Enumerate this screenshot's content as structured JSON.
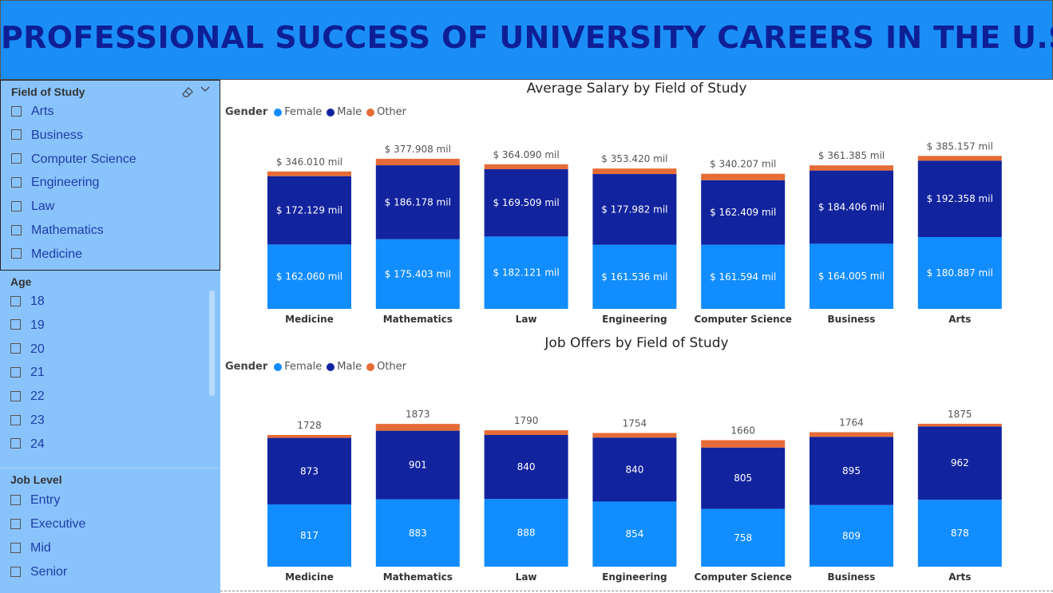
{
  "header": {
    "title": "PROFESSIONAL SUCCESS OF UNIVERSITY CAREERS IN THE U.S"
  },
  "colors": {
    "female": "#118DFF",
    "male": "#12239E",
    "other": "#E66C37"
  },
  "slicers": {
    "field": {
      "title": "Field of Study",
      "items": [
        "Arts",
        "Business",
        "Computer Science",
        "Engineering",
        "Law",
        "Mathematics",
        "Medicine"
      ]
    },
    "age": {
      "title": "Age",
      "items": [
        "18",
        "19",
        "20",
        "21",
        "22",
        "23",
        "24"
      ]
    },
    "job": {
      "title": "Job Level",
      "items": [
        "Entry",
        "Executive",
        "Mid",
        "Senior"
      ]
    }
  },
  "chart_data": [
    {
      "type": "bar",
      "stacked": true,
      "title": "Average Salary by Field of Study",
      "legend": {
        "title": "Gender",
        "placement": "top-left"
      },
      "categories": [
        "Medicine",
        "Mathematics",
        "Law",
        "Engineering",
        "Computer Science",
        "Business",
        "Arts"
      ],
      "series": [
        {
          "name": "Female",
          "values": [
            162.06,
            175.403,
            182.121,
            161.536,
            161.594,
            164.005,
            180.887
          ],
          "labels": [
            "$ 162.060 mil",
            "$ 175.403 mil",
            "$ 182.121 mil",
            "$ 161.536 mil",
            "$ 161.594 mil",
            "$ 164.005 mil",
            "$ 180.887 mil"
          ]
        },
        {
          "name": "Male",
          "values": [
            172.129,
            186.178,
            169.509,
            177.982,
            162.409,
            184.406,
            192.358
          ],
          "labels": [
            "$ 172.129 mil",
            "$ 186.178 mil",
            "$ 169.509 mil",
            "$ 177.982 mil",
            "$ 162.409 mil",
            "$ 184.406 mil",
            "$ 192.358 mil"
          ]
        },
        {
          "name": "Other",
          "values": [
            11.821,
            16.327,
            12.46,
            13.902,
            16.204,
            12.974,
            11.912
          ]
        }
      ],
      "totals": [
        346.01,
        377.908,
        364.09,
        353.42,
        340.207,
        361.385,
        385.157
      ],
      "total_labels": [
        "$ 346.010 mil",
        "$ 377.908 mil",
        "$ 364.090 mil",
        "$ 353.420 mil",
        "$ 340.207 mil",
        "$ 361.385 mil",
        "$ 385.157 mil"
      ],
      "ylim": [
        0,
        420
      ]
    },
    {
      "type": "bar",
      "stacked": true,
      "title": "Job Offers by Field of Study",
      "legend": {
        "title": "Gender",
        "placement": "top-left"
      },
      "categories": [
        "Medicine",
        "Mathematics",
        "Law",
        "Engineering",
        "Computer Science",
        "Business",
        "Arts"
      ],
      "series": [
        {
          "name": "Female",
          "values": [
            817,
            883,
            888,
            854,
            758,
            809,
            878
          ],
          "labels": [
            "817",
            "883",
            "888",
            "854",
            "758",
            "809",
            "878"
          ]
        },
        {
          "name": "Male",
          "values": [
            873,
            901,
            840,
            840,
            805,
            895,
            962
          ],
          "labels": [
            "873",
            "901",
            "840",
            "840",
            "805",
            "895",
            "962"
          ]
        },
        {
          "name": "Other",
          "values": [
            38,
            89,
            62,
            60,
            97,
            60,
            35
          ]
        }
      ],
      "totals": [
        1728,
        1873,
        1790,
        1754,
        1660,
        1764,
        1875
      ],
      "total_labels": [
        "1728",
        "1873",
        "1790",
        "1754",
        "1660",
        "1764",
        "1875"
      ],
      "ylim": [
        0,
        2000
      ]
    }
  ]
}
